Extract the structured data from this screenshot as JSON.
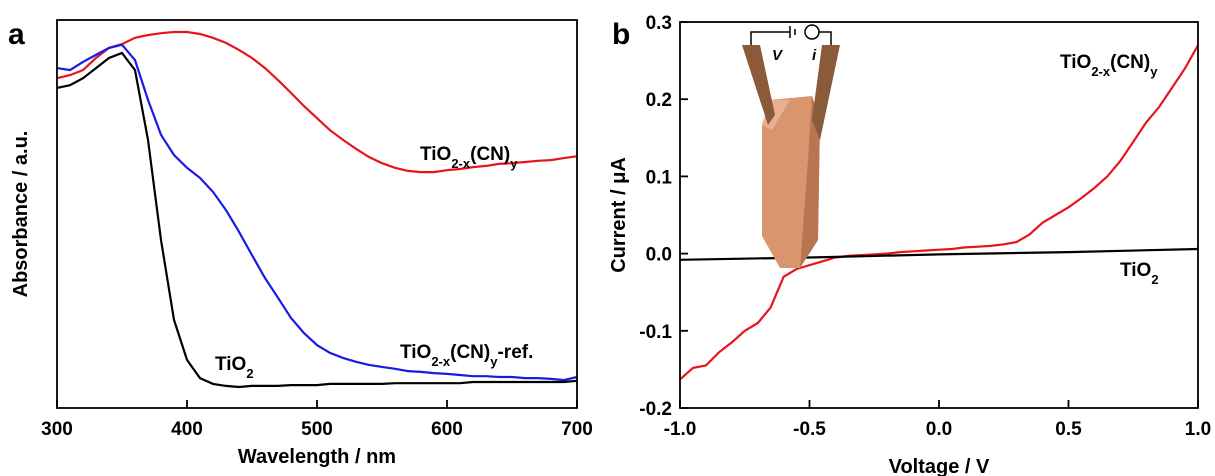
{
  "chart_data": [
    {
      "type": "line",
      "panel": "a",
      "xlabel": "Wavelength / nm",
      "ylabel": "Absorbance / a.u.",
      "xlim": [
        300,
        700
      ],
      "xticks": [
        300,
        400,
        500,
        600,
        700
      ],
      "ylim": [
        0,
        1
      ],
      "x": [
        300,
        310,
        320,
        330,
        340,
        350,
        360,
        370,
        380,
        390,
        400,
        410,
        420,
        430,
        440,
        450,
        460,
        470,
        480,
        490,
        500,
        510,
        520,
        530,
        540,
        550,
        560,
        570,
        580,
        590,
        600,
        610,
        620,
        630,
        640,
        650,
        660,
        670,
        680,
        690,
        700
      ],
      "series": [
        {
          "name": [
            "TiO",
            "2-x",
            "(CN)",
            "y"
          ],
          "color": "#e8141c",
          "values": [
            0.85,
            0.858,
            0.871,
            0.902,
            0.928,
            0.938,
            0.954,
            0.961,
            0.966,
            0.969,
            0.969,
            0.964,
            0.954,
            0.941,
            0.923,
            0.902,
            0.876,
            0.845,
            0.812,
            0.778,
            0.747,
            0.716,
            0.691,
            0.668,
            0.647,
            0.631,
            0.619,
            0.611,
            0.608,
            0.608,
            0.613,
            0.616,
            0.621,
            0.624,
            0.629,
            0.631,
            0.634,
            0.637,
            0.639,
            0.644,
            0.649
          ]
        },
        {
          "name": [
            "TiO",
            "2-x",
            "(CN)",
            "y",
            "-ref."
          ],
          "color": "#1a1ae6",
          "values": [
            0.876,
            0.871,
            0.892,
            0.91,
            0.928,
            0.936,
            0.897,
            0.794,
            0.704,
            0.652,
            0.619,
            0.593,
            0.557,
            0.51,
            0.454,
            0.394,
            0.335,
            0.284,
            0.232,
            0.193,
            0.162,
            0.142,
            0.129,
            0.119,
            0.111,
            0.106,
            0.101,
            0.095,
            0.093,
            0.09,
            0.088,
            0.085,
            0.082,
            0.082,
            0.08,
            0.08,
            0.077,
            0.077,
            0.075,
            0.072,
            0.08
          ]
        },
        {
          "name": [
            "TiO",
            "2"
          ],
          "color": "#000000",
          "values": [
            0.825,
            0.832,
            0.85,
            0.876,
            0.902,
            0.915,
            0.871,
            0.691,
            0.433,
            0.227,
            0.124,
            0.077,
            0.062,
            0.057,
            0.054,
            0.057,
            0.057,
            0.057,
            0.059,
            0.059,
            0.059,
            0.062,
            0.062,
            0.062,
            0.062,
            0.062,
            0.064,
            0.064,
            0.064,
            0.064,
            0.064,
            0.064,
            0.067,
            0.067,
            0.067,
            0.067,
            0.067,
            0.067,
            0.067,
            0.067,
            0.07
          ]
        }
      ]
    },
    {
      "type": "line",
      "panel": "b",
      "xlabel": "Voltage / V",
      "ylabel": "Current / μA",
      "inset_labels": [
        "V",
        "i"
      ],
      "xlim": [
        -1,
        1
      ],
      "xticks": [
        {
          "value": -1,
          "label": "-1.0"
        },
        -0.5,
        {
          "value": 0,
          "label": "0.0"
        },
        0.5,
        {
          "value": 1,
          "label": "1.0"
        }
      ],
      "ylim": [
        -0.2,
        0.3
      ],
      "yticks": [
        -0.2,
        -0.1,
        {
          "value": 0,
          "label": "0.0"
        },
        0.1,
        0.2,
        0.3
      ],
      "series": [
        {
          "name": [
            "TiO",
            "2-x",
            "(CN)",
            "y"
          ],
          "color": "#e8141c",
          "x": [
            -1,
            -0.95,
            -0.9,
            -0.85,
            -0.8,
            -0.75,
            -0.7,
            -0.65,
            -0.6,
            -0.55,
            -0.5,
            -0.45,
            -0.4,
            -0.35,
            -0.3,
            -0.25,
            -0.2,
            -0.15,
            -0.1,
            -0.05,
            0,
            0.05,
            0.1,
            0.15,
            0.2,
            0.25,
            0.3,
            0.35,
            0.4,
            0.45,
            0.5,
            0.55,
            0.6,
            0.65,
            0.7,
            0.75,
            0.8,
            0.85,
            0.9,
            0.95,
            1
          ],
          "values": [
            -0.163,
            -0.148,
            -0.145,
            -0.128,
            -0.115,
            -0.1,
            -0.09,
            -0.07,
            -0.03,
            -0.02,
            -0.015,
            -0.01,
            -0.005,
            -0.003,
            -0.002,
            -0.001,
            0.0,
            0.002,
            0.003,
            0.004,
            0.005,
            0.006,
            0.008,
            0.009,
            0.01,
            0.012,
            0.015,
            0.025,
            0.04,
            0.05,
            0.06,
            0.072,
            0.085,
            0.1,
            0.12,
            0.145,
            0.17,
            0.19,
            0.215,
            0.24,
            0.27
          ]
        },
        {
          "name": [
            "TiO",
            "2"
          ],
          "color": "#000000",
          "x": [
            -1,
            -0.5,
            0,
            0.5,
            1
          ],
          "values": [
            -0.008,
            -0.005,
            -0.001,
            0.002,
            0.006
          ]
        }
      ]
    }
  ]
}
